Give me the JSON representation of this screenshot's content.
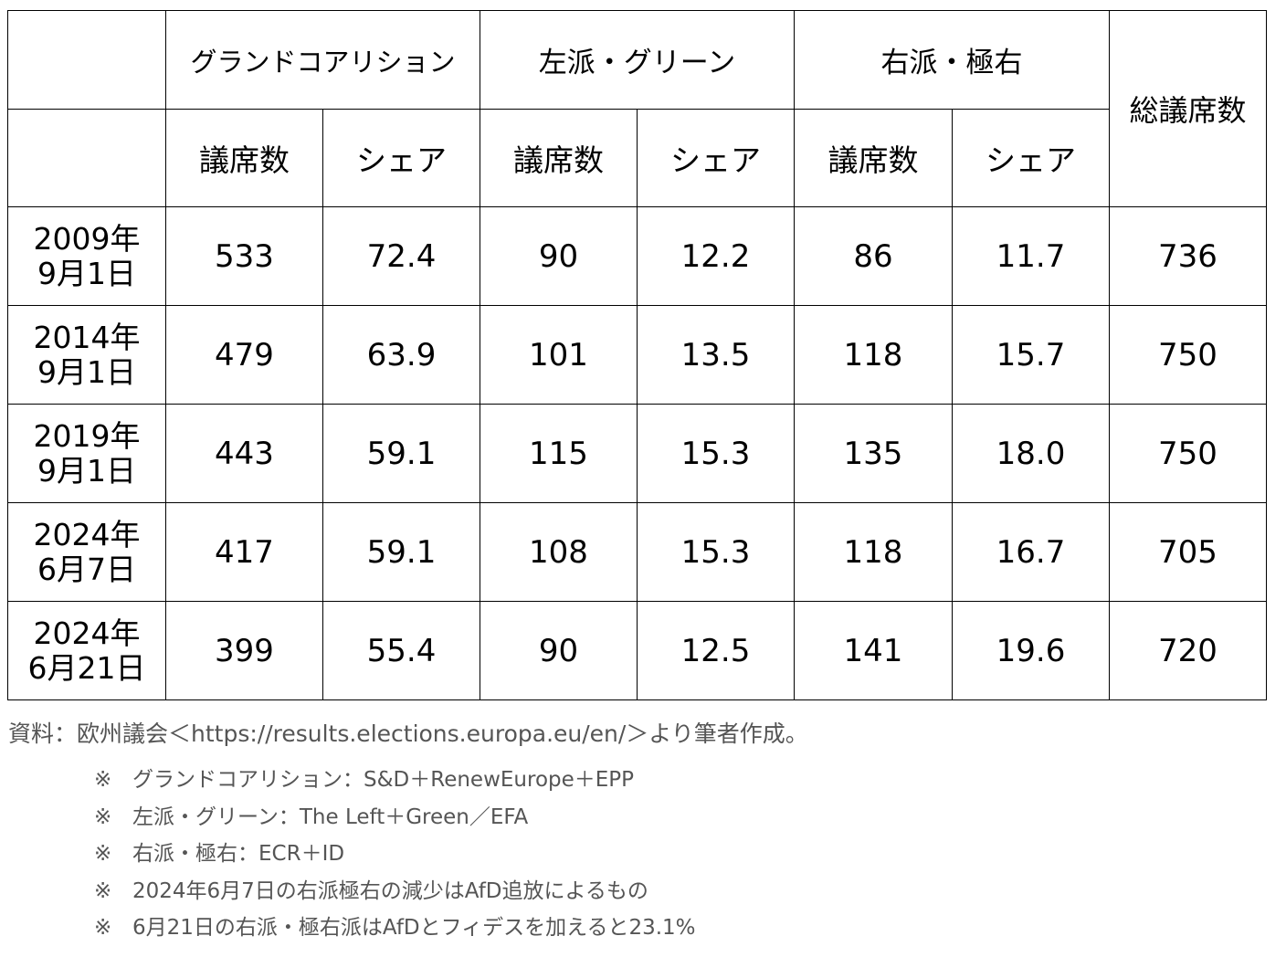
{
  "table": {
    "groups": [
      "グランドコアリション",
      "左派・グリーン",
      "右派・極右"
    ],
    "total_header": "総議席数",
    "sub_seats": "議席数",
    "sub_share": "シェア",
    "rows": [
      {
        "date_line1": "2009年",
        "date_line2": "9月1日",
        "gc_seats": "533",
        "gc_share": "72.4",
        "lg_seats": "90",
        "lg_share": "12.2",
        "rf_seats": "86",
        "rf_share": "11.7",
        "total": "736"
      },
      {
        "date_line1": "2014年",
        "date_line2": "9月1日",
        "gc_seats": "479",
        "gc_share": "63.9",
        "lg_seats": "101",
        "lg_share": "13.5",
        "rf_seats": "118",
        "rf_share": "15.7",
        "total": "750"
      },
      {
        "date_line1": "2019年",
        "date_line2": "9月1日",
        "gc_seats": "443",
        "gc_share": "59.1",
        "lg_seats": "115",
        "lg_share": "15.3",
        "rf_seats": "135",
        "rf_share": "18.0",
        "total": "750"
      },
      {
        "date_line1": "2024年",
        "date_line2": "6月7日",
        "gc_seats": "417",
        "gc_share": "59.1",
        "lg_seats": "108",
        "lg_share": "15.3",
        "rf_seats": "118",
        "rf_share": "16.7",
        "total": "705"
      },
      {
        "date_line1": "2024年",
        "date_line2": "6月21日",
        "gc_seats": "399",
        "gc_share": "55.4",
        "lg_seats": "90",
        "lg_share": "12.5",
        "rf_seats": "141",
        "rf_share": "19.6",
        "total": "720"
      }
    ]
  },
  "source": "資料：欧州議会＜https://results.elections.europa.eu/en/＞より筆者作成。",
  "note_mark": "※",
  "notes": [
    "グランドコアリション：S&D＋RenewEurope＋EPP",
    "左派・グリーン：The Left＋Green／EFA",
    "右派・極右：ECR＋ID",
    "2024年6月7日の右派極右の減少はAfD追放によるもの",
    "6月21日の右派・極右派はAfDとフィデスを加えると23.1%"
  ],
  "colors": {
    "text": "#000000",
    "border": "#000000",
    "note_text": "#555555",
    "background": "#ffffff"
  }
}
